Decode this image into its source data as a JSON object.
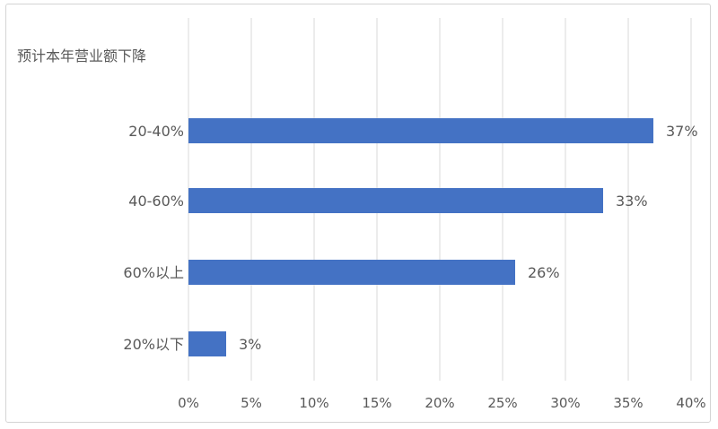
{
  "chart_data": {
    "type": "bar",
    "orientation": "horizontal",
    "title": "",
    "category_axis_label": "预计本年营业额下降",
    "categories": [
      "20-40%",
      "40-60%",
      "60%以上",
      "20%以下"
    ],
    "values": [
      37,
      33,
      26,
      3
    ],
    "value_labels": [
      "37%",
      "33%",
      "26%",
      "3%"
    ],
    "x_ticks": [
      "0%",
      "5%",
      "10%",
      "15%",
      "20%",
      "25%",
      "30%",
      "35%",
      "40%"
    ],
    "xlim": [
      0,
      40
    ],
    "grid": "vertical gridlines",
    "legend": "none",
    "colors": {
      "bar": "#4472c4",
      "grid": "#d9d9d9",
      "text": "#595959"
    }
  }
}
